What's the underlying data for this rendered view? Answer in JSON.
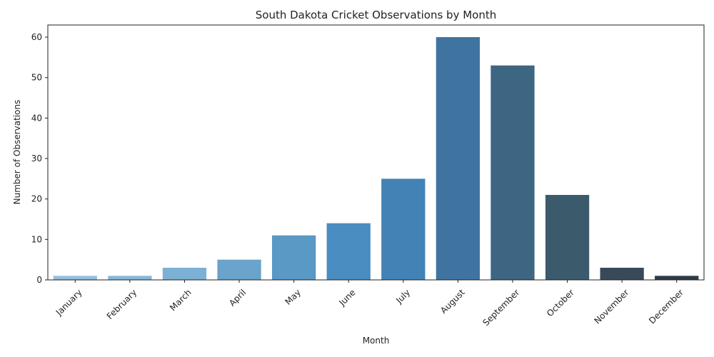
{
  "chart_data": {
    "type": "bar",
    "title": "South Dakota Cricket Observations by Month",
    "xlabel": "Month",
    "ylabel": "Number of Observations",
    "categories": [
      "January",
      "February",
      "March",
      "April",
      "May",
      "June",
      "July",
      "August",
      "September",
      "October",
      "November",
      "December"
    ],
    "values": [
      1,
      1,
      3,
      5,
      11,
      14,
      25,
      60,
      53,
      21,
      3,
      1
    ],
    "colors": [
      "#94bfdc",
      "#89b7d8",
      "#7cb0d4",
      "#6aa3cb",
      "#5a98c6",
      "#4a8dc0",
      "#4382b4",
      "#3f74a0",
      "#3d6683",
      "#3b5a6c",
      "#38495a",
      "#2f3b46"
    ],
    "ylim": [
      0,
      63
    ],
    "yticks": [
      0,
      10,
      20,
      30,
      40,
      50,
      60
    ],
    "grid": false,
    "legend": "none"
  }
}
